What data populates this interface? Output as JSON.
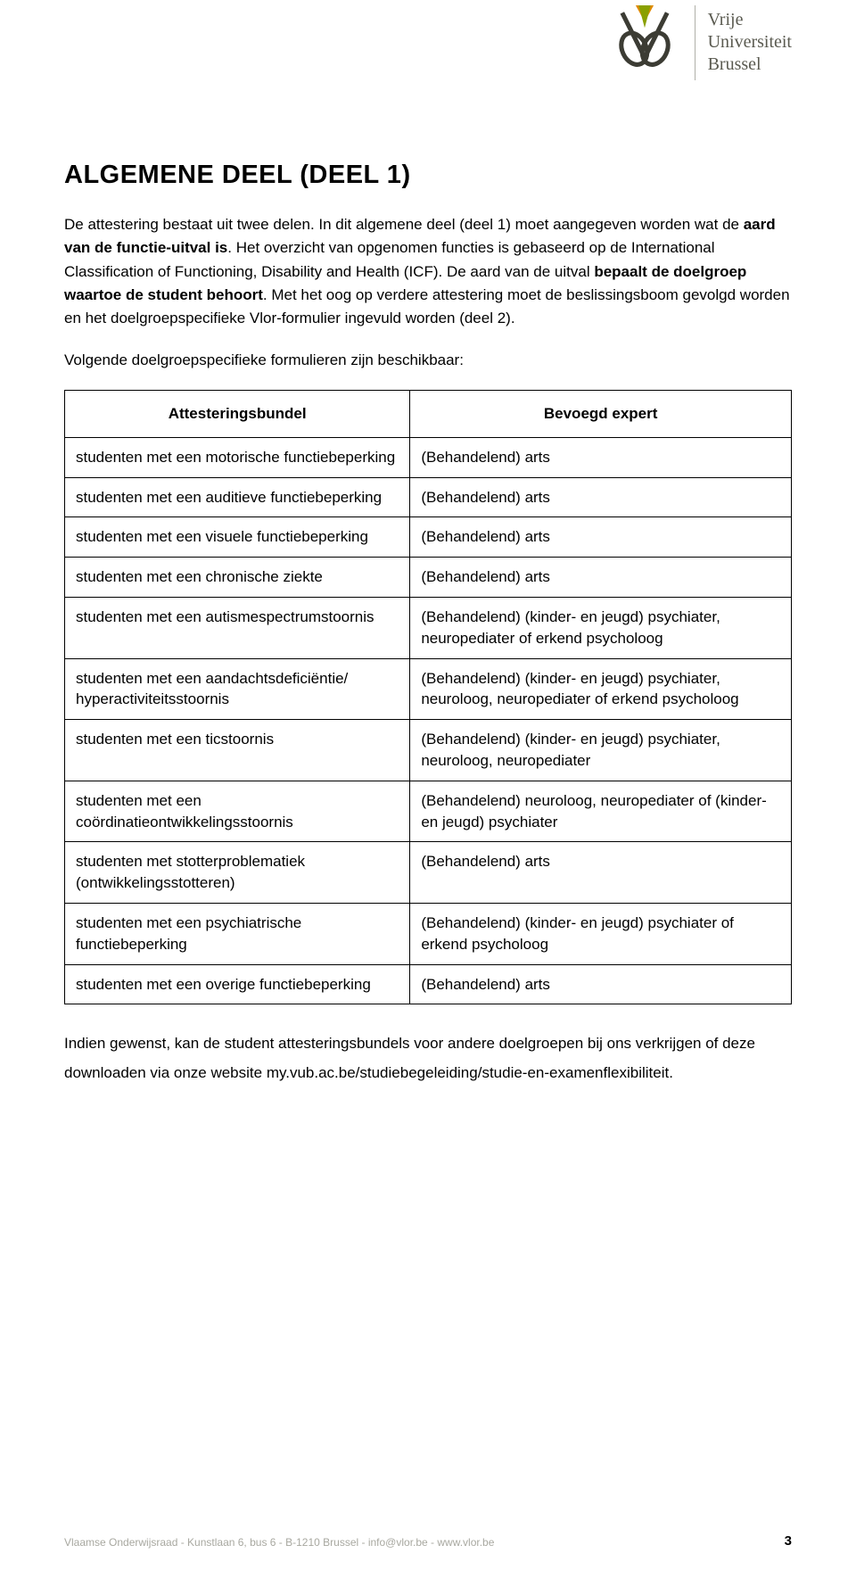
{
  "logo": {
    "line1": "Vrije",
    "line2": "Universiteit",
    "line3": "Brussel",
    "text_color": "#5a5a50",
    "accent_orange": "#e08a00",
    "accent_green": "#8aa000",
    "stroke_dark": "#3c3c34"
  },
  "heading": "ALGEMENE DEEL (DEEL 1)",
  "para1_a": "De attestering bestaat uit twee delen. In dit algemene deel (deel 1) moet aangegeven worden wat de ",
  "para1_bold1": "aard van de functie-uitval is",
  "para1_b": ". Het overzicht van opgenomen functies is gebaseerd op de International Classification of Functioning, Disability and Health (ICF). De aard van de uitval ",
  "para1_bold2": "bepaalt de doelgroep waartoe de student behoort",
  "para1_c": ". Met het oog op verdere attestering moet de beslissingsboom gevolgd worden en het doelgroepspecifieke Vlor-formulier ingevuld worden (deel 2).",
  "para2": "Volgende doelgroepspecifieke formulieren zijn beschikbaar:",
  "table": {
    "col1_header": "Attesteringsbundel",
    "col2_header": "Bevoegd expert",
    "rows": [
      {
        "c1": "studenten met een motorische functiebeperking",
        "c2": "(Behandelend) arts"
      },
      {
        "c1": "studenten met een auditieve functiebeperking",
        "c2": "(Behandelend) arts"
      },
      {
        "c1": "studenten met een visuele functiebeperking",
        "c2": "(Behandelend) arts"
      },
      {
        "c1": "studenten met een chronische ziekte",
        "c2": "(Behandelend) arts"
      },
      {
        "c1": "studenten met een autismespectrumstoornis",
        "c2": "(Behandelend) (kinder- en jeugd) psychiater, neuropediater of erkend psycholoog"
      },
      {
        "c1": "studenten met een aandachtsdeficiëntie/ hyperactiviteitsstoornis",
        "c2": "(Behandelend) (kinder- en jeugd) psychiater, neuroloog, neuropediater of erkend psycholoog"
      },
      {
        "c1": "studenten met een ticstoornis",
        "c2": "(Behandelend) (kinder- en jeugd) psychiater, neuroloog, neuropediater"
      },
      {
        "c1": "studenten met een coördinatieontwikkelingsstoornis",
        "c2": "(Behandelend) neuroloog, neuropediater of (kinder- en jeugd) psychiater"
      },
      {
        "c1": "studenten met stotterproblematiek (ontwikkelingsstotteren)",
        "c2": "(Behandelend) arts"
      },
      {
        "c1": "studenten met een psychiatrische functiebeperking",
        "c2": "(Behandelend) (kinder- en jeugd) psychiater of erkend psycholoog"
      },
      {
        "c1": "studenten met een overige functiebeperking",
        "c2": "(Behandelend) arts"
      }
    ]
  },
  "para3": "Indien gewenst, kan de student attesteringsbundels voor andere doelgroepen bij ons verkrijgen of deze downloaden via onze website my.vub.ac.be/studiebegeleiding/studie-en-examenflexibiliteit.",
  "footer_text": "Vlaamse Onderwijsraad - Kunstlaan 6, bus 6 - B-1210 Brussel - info@vlor.be - www.vlor.be",
  "page_number": "3"
}
